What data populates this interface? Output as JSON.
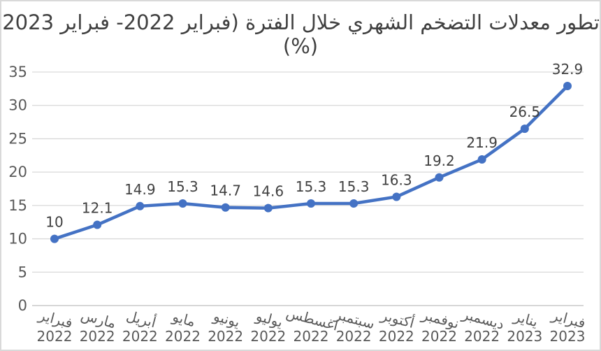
{
  "chart_data": {
    "type": "line",
    "title": "تطور معدلات التضخم الشهري خلال الفترة (فبراير 2022- فبراير 2023) (%)",
    "title_line1": "تطور معدلات التضخم الشهري خلال الفترة (فبراير 2022- فبراير 2023)",
    "title_line2": "(%)",
    "categories": [
      {
        "month": "فبراير",
        "year": "2022"
      },
      {
        "month": "مارس",
        "year": "2022"
      },
      {
        "month": "أبريل",
        "year": "2022"
      },
      {
        "month": "مايو",
        "year": "2022"
      },
      {
        "month": "يونيو",
        "year": "2022"
      },
      {
        "month": "يوليو",
        "year": "2022"
      },
      {
        "month": "اغسطس",
        "year": "2022"
      },
      {
        "month": "سبتمبر",
        "year": "2022"
      },
      {
        "month": "أكتوبر",
        "year": "2022"
      },
      {
        "month": "نوفمبر",
        "year": "2022"
      },
      {
        "month": "ديسمبر",
        "year": "2022"
      },
      {
        "month": "يناير",
        "year": "2023"
      },
      {
        "month": "فبراير",
        "year": "2023"
      }
    ],
    "values": [
      10,
      12.1,
      14.9,
      15.3,
      14.7,
      14.6,
      15.3,
      15.3,
      16.3,
      19.2,
      21.9,
      26.5,
      32.9
    ],
    "data_labels": [
      "10",
      "12.1",
      "14.9",
      "15.3",
      "14.7",
      "14.6",
      "15.3",
      "15.3",
      "16.3",
      "19.2",
      "21.9",
      "26.5",
      "32.9"
    ],
    "yticks": [
      0,
      5,
      10,
      15,
      20,
      25,
      30,
      35
    ],
    "ylim": [
      0,
      35
    ],
    "xlabel": "",
    "ylabel": "",
    "grid": true,
    "legend": "none",
    "colors": {
      "line": "#4472C4",
      "marker": "#4472C4",
      "gridline": "#D9D9D9",
      "axis_line": "#BFBFBF",
      "title_text": "#404040",
      "label_text": "#404040",
      "tick_text": "#595959",
      "frame_border": "#D9D9D9"
    }
  }
}
